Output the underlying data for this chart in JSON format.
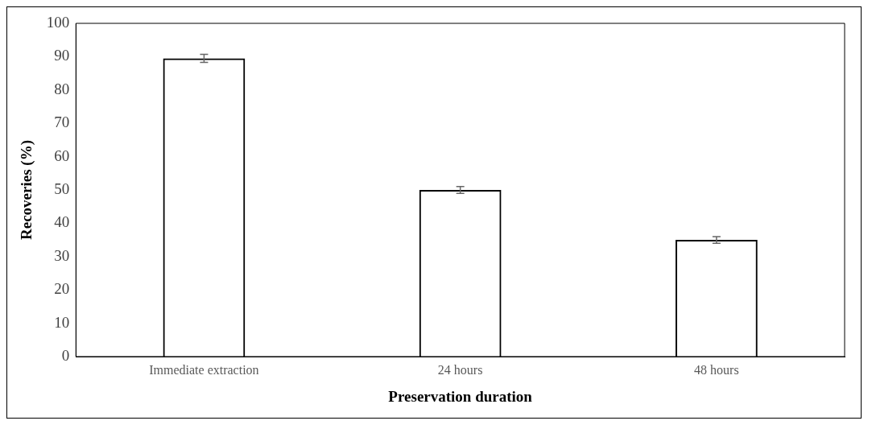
{
  "chart_data": {
    "type": "bar",
    "xlabel": "Preservation duration",
    "ylabel": "Recoveries (%)",
    "categories": [
      "Immediate extraction",
      "24 hours",
      "48 hours"
    ],
    "values": [
      89.5,
      50,
      35
    ],
    "errors": [
      1.2,
      1,
      1
    ],
    "color": "#000000",
    "ylim": [
      0,
      100
    ],
    "yticks": [
      0,
      10,
      20,
      30,
      40,
      50,
      60,
      70,
      80,
      90,
      100
    ],
    "grid": false,
    "legend": false
  }
}
